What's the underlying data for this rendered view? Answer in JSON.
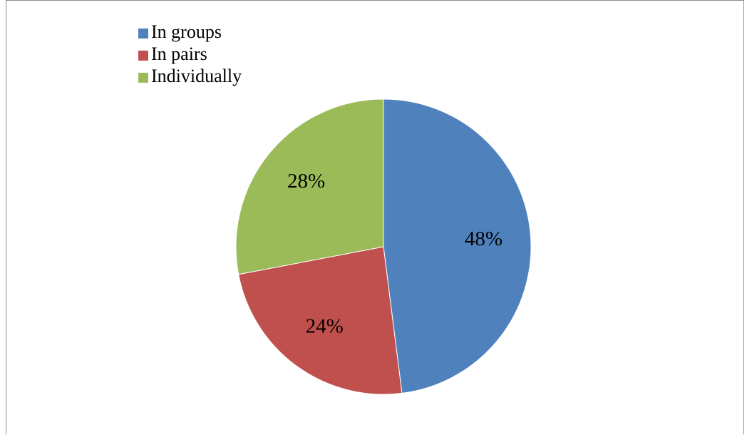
{
  "chart_data": {
    "type": "pie",
    "categories": [
      "In groups",
      "In pairs",
      "Individually"
    ],
    "values": [
      48,
      24,
      28
    ],
    "data_labels": [
      "48%",
      "24%",
      "28%"
    ],
    "colors": [
      "#4f81bd",
      "#c0504d",
      "#9bbb59"
    ],
    "title": "",
    "legend_position": "top-left",
    "start_angle": "12 o'clock, clockwise"
  }
}
